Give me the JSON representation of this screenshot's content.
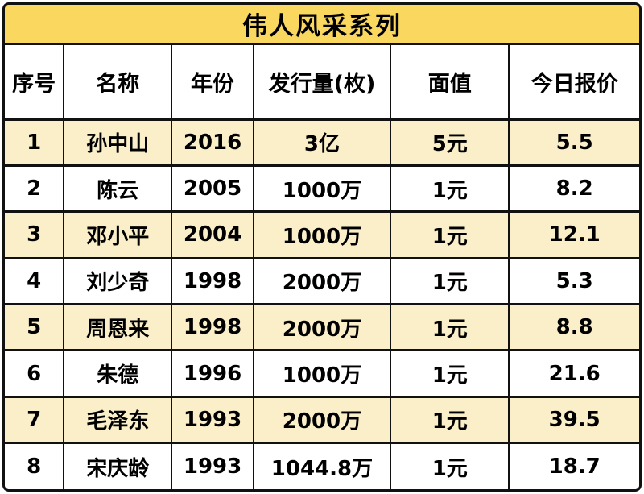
{
  "title": "伟人风采系列",
  "colors": {
    "title_bg": "#FAD860",
    "row_alt_bg": "#FAEFC8",
    "row_bg": "#FFFFFF",
    "border": "#111111",
    "text": "#000000"
  },
  "chart_data": {
    "type": "table",
    "title": "伟人风采系列",
    "columns": [
      "序号",
      "名称",
      "年份",
      "发行量(枚)",
      "面值",
      "今日报价"
    ],
    "rows": [
      [
        "1",
        "孙中山",
        "2016",
        "3亿",
        "5元",
        "5.5"
      ],
      [
        "2",
        "陈云",
        "2005",
        "1000万",
        "1元",
        "8.2"
      ],
      [
        "3",
        "邓小平",
        "2004",
        "1000万",
        "1元",
        "12.1"
      ],
      [
        "4",
        "刘少奇",
        "1998",
        "2000万",
        "1元",
        "5.3"
      ],
      [
        "5",
        "周恩来",
        "1998",
        "2000万",
        "1元",
        "8.8"
      ],
      [
        "6",
        "朱德",
        "1996",
        "1000万",
        "1元",
        "21.6"
      ],
      [
        "7",
        "毛泽东",
        "1993",
        "2000万",
        "1元",
        "39.5"
      ],
      [
        "8",
        "宋庆龄",
        "1993",
        "1044.8万",
        "1元",
        "18.7"
      ]
    ],
    "layout": {
      "alternating_row_shading": "odd rows cream, even rows white",
      "column_width_percent": [
        9.3,
        17.0,
        12.9,
        21.6,
        18.7,
        20.5
      ]
    }
  }
}
